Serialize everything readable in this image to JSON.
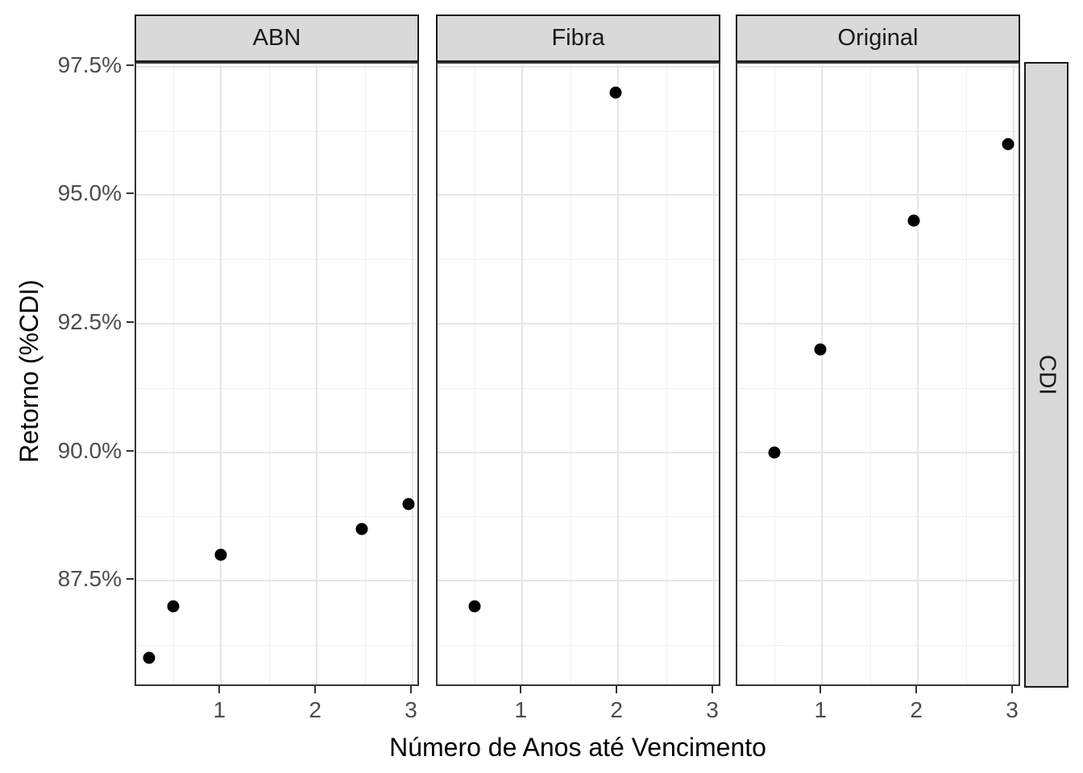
{
  "chart_data": {
    "type": "scatter",
    "title": "",
    "xlabel": "Número de Anos até Vencimento",
    "ylabel": "Retorno (%CDI)",
    "row_facet_label": "CDI",
    "facets": [
      {
        "label": "ABN",
        "points": [
          {
            "x": 0.25,
            "y": 86.0
          },
          {
            "x": 0.5,
            "y": 87.0
          },
          {
            "x": 1.0,
            "y": 88.0
          },
          {
            "x": 2.47,
            "y": 88.5
          },
          {
            "x": 2.96,
            "y": 89.0
          }
        ]
      },
      {
        "label": "Fibra",
        "points": [
          {
            "x": 0.5,
            "y": 87.0
          },
          {
            "x": 1.97,
            "y": 97.0
          }
        ]
      },
      {
        "label": "Original",
        "points": [
          {
            "x": 0.5,
            "y": 90.0
          },
          {
            "x": 0.98,
            "y": 92.0
          },
          {
            "x": 1.96,
            "y": 94.5
          },
          {
            "x": 2.94,
            "y": 96.0
          }
        ]
      }
    ],
    "x_axis": {
      "lim": [
        0.114,
        3.084
      ],
      "major_ticks": [
        1,
        2,
        3
      ],
      "minor_ticks": [
        0.5,
        1.5,
        2.5
      ],
      "tick_labels": [
        "1",
        "2",
        "3"
      ]
    },
    "y_axis": {
      "lim": [
        85.42,
        97.56
      ],
      "major_ticks": [
        87.5,
        90.0,
        92.5,
        95.0,
        97.5
      ],
      "minor_ticks": [
        86.25,
        88.75,
        91.25,
        93.75,
        96.25
      ],
      "tick_labels": [
        "87.5%",
        "90.0%",
        "92.5%",
        "95.0%",
        "97.5%"
      ]
    },
    "grid": true,
    "legend": "none",
    "colors": {
      "point": "#000000",
      "strip_bg": "#d9d9d9",
      "strip_border": "#1a1a1a",
      "panel_border": "#333333",
      "grid_major": "#e6e6e6",
      "grid_minor": "#efefef",
      "tick_label": "#4d4d4d",
      "axis_title": "#000000",
      "background": "#ffffff"
    }
  }
}
